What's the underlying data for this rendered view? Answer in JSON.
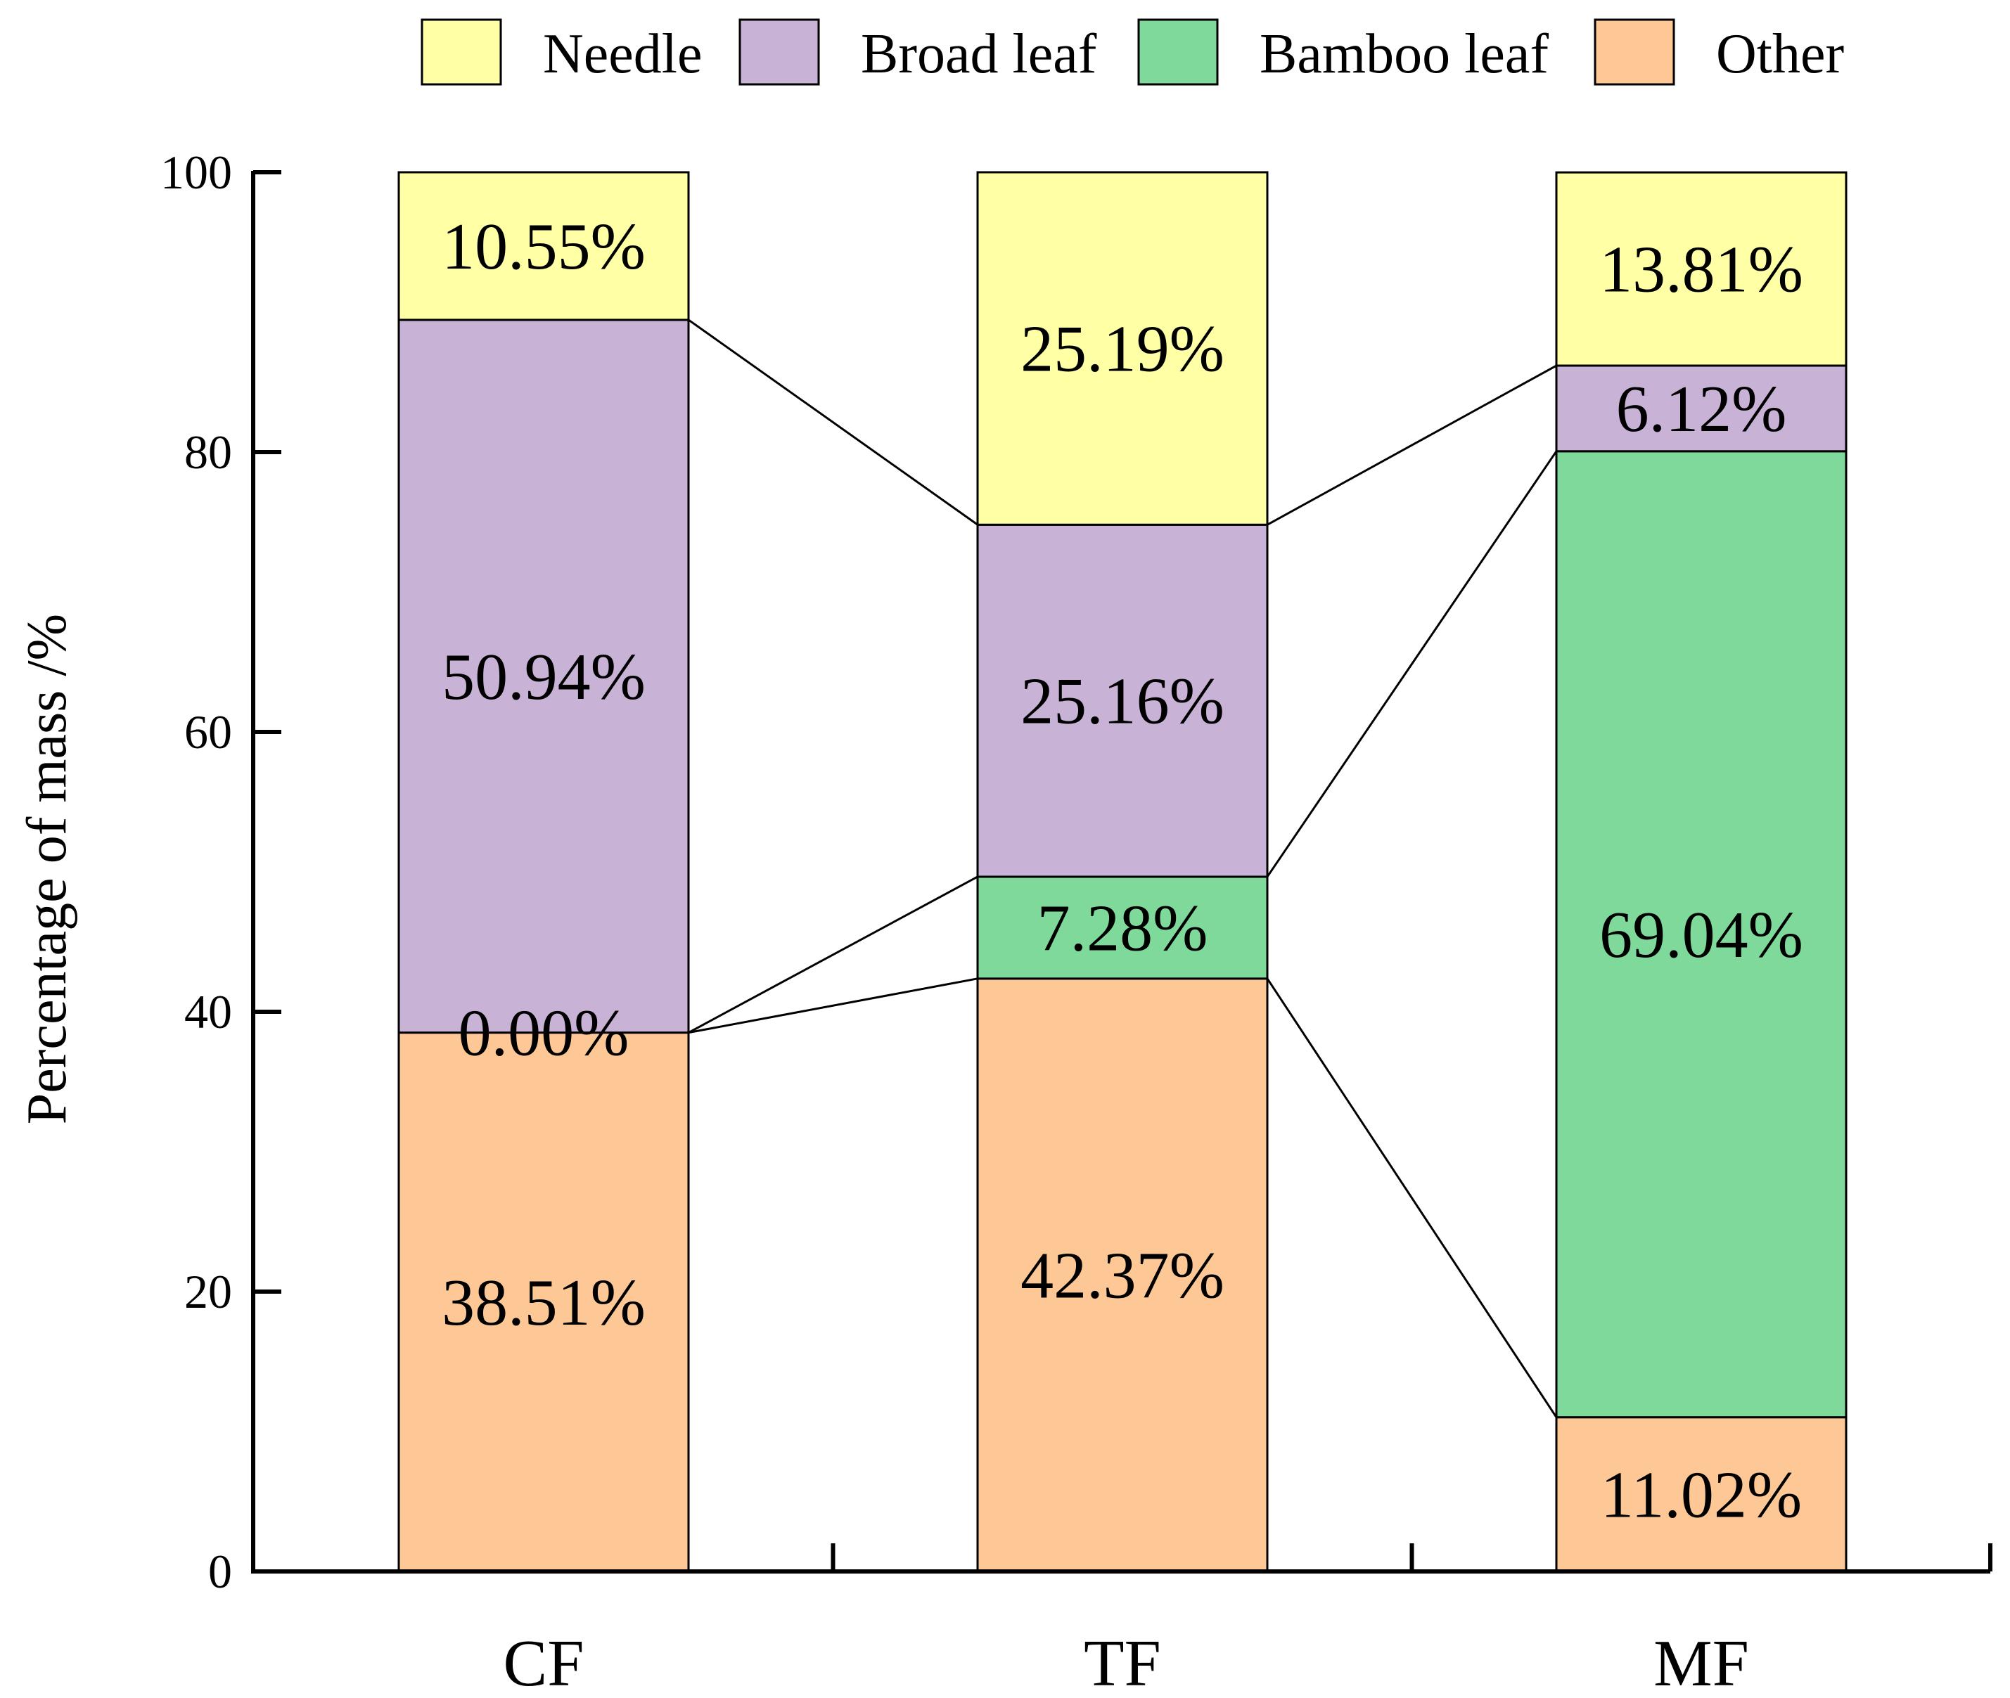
{
  "chart_data": {
    "type": "bar",
    "stacked": true,
    "title": "",
    "xlabel": "",
    "ylabel": "Percentage of mass /%",
    "ylim": [
      0,
      100
    ],
    "yticks": [
      "0",
      "20",
      "40",
      "60",
      "80",
      "100"
    ],
    "categories": [
      "CF",
      "TF",
      "MF"
    ],
    "legend_position": "top",
    "series": [
      {
        "name": "Other",
        "color": "#FDC896",
        "values": [
          38.51,
          42.37,
          11.02
        ],
        "labels": [
          "38.51%",
          "42.37%",
          "11.02%"
        ]
      },
      {
        "name": "Bamboo leaf",
        "color": "#7FD99A",
        "values": [
          0.0,
          7.28,
          69.04
        ],
        "labels": [
          "0.00%",
          "7.28%",
          "69.04%"
        ]
      },
      {
        "name": "Broad leaf",
        "color": "#C8B2D6",
        "values": [
          50.94,
          25.16,
          6.12
        ],
        "labels": [
          "50.94%",
          "25.16%",
          "6.12%"
        ]
      },
      {
        "name": "Needle",
        "color": "#FFFFA6",
        "values": [
          10.55,
          25.19,
          13.81
        ],
        "labels": [
          "10.55%",
          "25.19%",
          "13.81%"
        ]
      }
    ],
    "legend_order": [
      "Needle",
      "Broad leaf",
      "Bamboo leaf",
      "Other"
    ]
  }
}
